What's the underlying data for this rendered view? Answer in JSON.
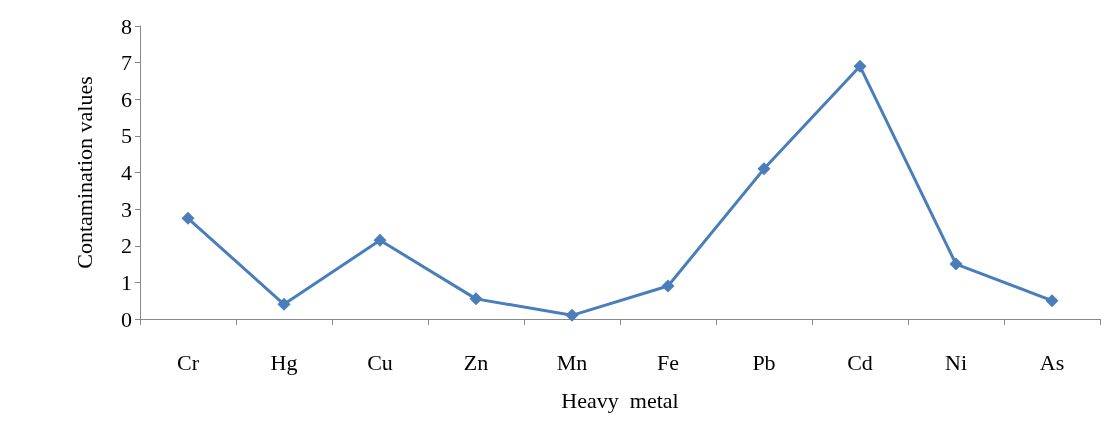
{
  "chart_data": {
    "type": "line",
    "xlabel": "Heavy  metal",
    "ylabel": "Contamination values",
    "categories": [
      "Cr",
      "Hg",
      "Cu",
      "Zn",
      "Mn",
      "Fe",
      "Pb",
      "Cd",
      "Ni",
      "As"
    ],
    "series": [
      {
        "color": "#4a7ebb",
        "values": [
          2.75,
          0.4,
          2.15,
          0.55,
          0.1,
          0.9,
          4.1,
          6.9,
          1.5,
          0.5
        ]
      }
    ],
    "ylim": [
      0,
      8
    ],
    "yticks": [
      0,
      1,
      2,
      3,
      4,
      5,
      6,
      7,
      8
    ],
    "grid": false,
    "marker": "diamond",
    "line_style": "solid"
  }
}
